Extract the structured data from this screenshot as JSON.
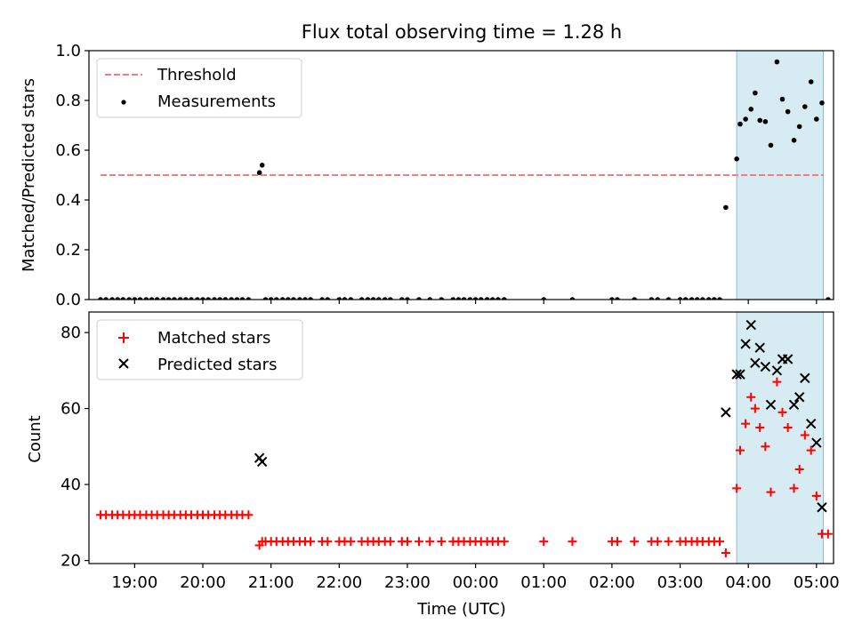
{
  "chart_data": [
    {
      "type": "scatter",
      "title": "Flux total observing time = 1.28 h",
      "xlabel": "",
      "ylabel": "Matched/Predicted stars",
      "ylim": [
        0,
        1
      ],
      "yticks": [
        0.0,
        0.2,
        0.4,
        0.6,
        0.8,
        1.0
      ],
      "ytick_labels": [
        "0.0",
        "0.2",
        "0.4",
        "0.6",
        "0.8",
        "1.0"
      ],
      "xlim": [
        18.33,
        29.25
      ],
      "highlight_range": [
        27.83,
        29.1
      ],
      "legend": {
        "position": "top-left",
        "entries": [
          "Threshold",
          "Measurements"
        ]
      },
      "threshold": {
        "name": "Threshold",
        "value": 0.5,
        "x_range": [
          18.5,
          29.1
        ],
        "color": "#f08080"
      },
      "series": [
        {
          "name": "Measurements",
          "color": "#000000",
          "x": [
            18.5,
            18.58,
            18.67,
            18.75,
            18.83,
            18.92,
            19.0,
            19.08,
            19.17,
            19.25,
            19.33,
            19.42,
            19.5,
            19.58,
            19.67,
            19.75,
            19.83,
            19.92,
            20.0,
            20.08,
            20.17,
            20.25,
            20.33,
            20.42,
            20.5,
            20.58,
            20.67,
            20.83,
            20.87,
            20.92,
            21.0,
            21.08,
            21.17,
            21.25,
            21.33,
            21.42,
            21.5,
            21.58,
            21.75,
            21.83,
            22.0,
            22.08,
            22.17,
            22.33,
            22.42,
            22.5,
            22.58,
            22.67,
            22.75,
            22.92,
            23.0,
            23.17,
            23.33,
            23.5,
            23.67,
            23.75,
            23.83,
            23.92,
            24.0,
            24.08,
            24.17,
            24.25,
            24.33,
            24.42,
            25.0,
            25.42,
            26.0,
            26.08,
            26.33,
            26.58,
            26.67,
            26.83,
            27.0,
            27.08,
            27.17,
            27.25,
            27.33,
            27.42,
            27.5,
            27.58,
            27.67,
            27.83,
            27.88,
            27.96,
            28.04,
            28.1,
            28.17,
            28.25,
            28.33,
            28.42,
            28.5,
            28.58,
            28.67,
            28.75,
            28.83,
            28.92,
            29.0,
            29.08,
            29.17
          ],
          "y": [
            0,
            0,
            0,
            0,
            0,
            0,
            0,
            0,
            0,
            0,
            0,
            0,
            0,
            0,
            0,
            0,
            0,
            0,
            0,
            0,
            0,
            0,
            0,
            0,
            0,
            0,
            0,
            0.51,
            0.54,
            0,
            0,
            0,
            0,
            0,
            0,
            0,
            0,
            0,
            0,
            0,
            0,
            0,
            0,
            0,
            0,
            0,
            0,
            0,
            0,
            0,
            0,
            0,
            0,
            0,
            0,
            0,
            0,
            0,
            0,
            0,
            0,
            0,
            0,
            0,
            0,
            0,
            0,
            0,
            0,
            0,
            0,
            0,
            0,
            0,
            0,
            0,
            0,
            0,
            0,
            0,
            0.37,
            0.565,
            0.705,
            0.725,
            0.765,
            0.83,
            0.72,
            0.715,
            0.62,
            0.955,
            0.805,
            0.755,
            0.64,
            0.695,
            0.775,
            0.875,
            0.725,
            0.79,
            0
          ]
        }
      ]
    },
    {
      "type": "scatter",
      "xlabel": "Time (UTC)",
      "ylabel": "Count",
      "ylim": [
        19.2,
        85.4
      ],
      "yticks": [
        20,
        40,
        60,
        80
      ],
      "ytick_labels": [
        "20",
        "40",
        "60",
        "80"
      ],
      "xlim": [
        18.33,
        29.25
      ],
      "xticks": [
        19,
        20,
        21,
        22,
        23,
        24,
        25,
        26,
        27,
        28,
        29
      ],
      "xtick_labels": [
        "19:00",
        "20:00",
        "21:00",
        "22:00",
        "23:00",
        "00:00",
        "01:00",
        "02:00",
        "03:00",
        "04:00",
        "05:00"
      ],
      "highlight_range": [
        27.83,
        29.1
      ],
      "legend": {
        "position": "top-left",
        "entries": [
          "Matched stars",
          "Predicted stars"
        ]
      },
      "series": [
        {
          "name": "Matched stars",
          "color": "#ff0000",
          "marker": "plus",
          "x": [
            18.5,
            18.58,
            18.67,
            18.75,
            18.83,
            18.92,
            19.0,
            19.08,
            19.17,
            19.25,
            19.33,
            19.42,
            19.5,
            19.58,
            19.67,
            19.75,
            19.83,
            19.92,
            20.0,
            20.08,
            20.17,
            20.25,
            20.33,
            20.42,
            20.5,
            20.58,
            20.67,
            20.83,
            20.87,
            20.92,
            21.0,
            21.08,
            21.17,
            21.25,
            21.33,
            21.42,
            21.5,
            21.58,
            21.75,
            21.83,
            22.0,
            22.08,
            22.17,
            22.33,
            22.42,
            22.5,
            22.58,
            22.67,
            22.75,
            22.92,
            23.0,
            23.17,
            23.33,
            23.5,
            23.67,
            23.75,
            23.83,
            23.92,
            24.0,
            24.08,
            24.17,
            24.25,
            24.33,
            24.42,
            25.0,
            25.42,
            26.0,
            26.08,
            26.33,
            26.58,
            26.67,
            26.83,
            27.0,
            27.08,
            27.17,
            27.25,
            27.33,
            27.42,
            27.5,
            27.58,
            27.67,
            27.83,
            27.88,
            27.96,
            28.04,
            28.1,
            28.17,
            28.25,
            28.33,
            28.42,
            28.5,
            28.58,
            28.67,
            28.75,
            28.83,
            28.92,
            29.0,
            29.08,
            29.17
          ],
          "y": [
            32,
            32,
            32,
            32,
            32,
            32,
            32,
            32,
            32,
            32,
            32,
            32,
            32,
            32,
            32,
            32,
            32,
            32,
            32,
            32,
            32,
            32,
            32,
            32,
            32,
            32,
            32,
            24,
            25,
            25,
            25,
            25,
            25,
            25,
            25,
            25,
            25,
            25,
            25,
            25,
            25,
            25,
            25,
            25,
            25,
            25,
            25,
            25,
            25,
            25,
            25,
            25,
            25,
            25,
            25,
            25,
            25,
            25,
            25,
            25,
            25,
            25,
            25,
            25,
            25,
            25,
            25,
            25,
            25,
            25,
            25,
            25,
            25,
            25,
            25,
            25,
            25,
            25,
            25,
            25,
            22,
            39,
            49,
            56,
            63,
            60,
            55,
            50,
            38,
            67,
            59,
            55,
            39,
            44,
            53,
            49,
            37,
            27,
            27
          ]
        },
        {
          "name": "Predicted stars",
          "color": "#000000",
          "marker": "x",
          "x": [
            20.83,
            20.87,
            27.67,
            27.83,
            27.88,
            27.96,
            28.04,
            28.1,
            28.17,
            28.25,
            28.33,
            28.42,
            28.5,
            28.58,
            28.67,
            28.75,
            28.83,
            28.92,
            29.0,
            29.08
          ],
          "y": [
            47,
            46,
            59,
            69,
            69,
            77,
            82,
            72,
            76,
            71,
            61,
            70,
            73,
            73,
            61,
            63,
            68,
            56,
            51,
            34
          ]
        }
      ]
    }
  ]
}
